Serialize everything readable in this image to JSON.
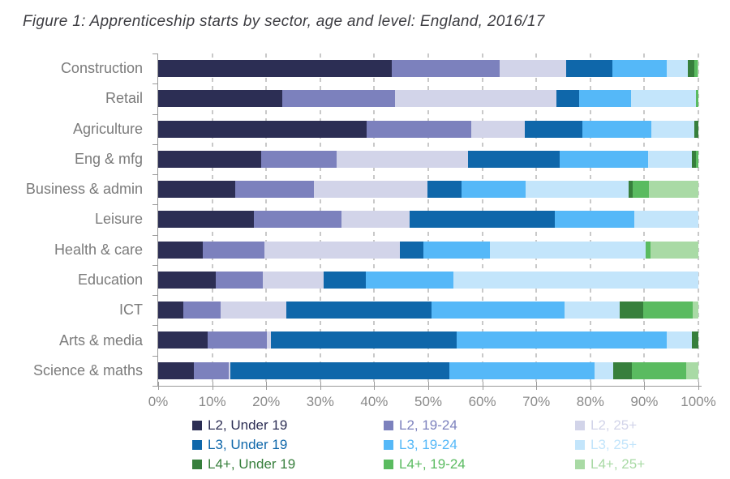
{
  "title": "Figure 1: Apprenticeship starts by sector, age and level: England, 2016/17",
  "chart_data": {
    "type": "bar",
    "stacked": true,
    "orientation": "horizontal",
    "unit": "percent",
    "xlim": [
      0,
      100
    ],
    "grid": "dashed-vertical",
    "legend_position": "bottom",
    "x_ticks": [
      "0%",
      "10%",
      "20%",
      "30%",
      "40%",
      "50%",
      "60%",
      "70%",
      "80%",
      "90%",
      "100%"
    ],
    "categories": [
      "Construction",
      "Retail",
      "Agriculture",
      "Eng & mfg",
      "Business & admin",
      "Leisure",
      "Health & care",
      "Education",
      "ICT",
      "Arts & media",
      "Science & maths"
    ],
    "series": [
      {
        "name": "L2, Under 19",
        "color": "#2C2E54",
        "values": [
          43.3,
          22.9,
          38.6,
          19.1,
          14.2,
          17.7,
          8.3,
          10.7,
          4.6,
          9.1,
          6.6
        ]
      },
      {
        "name": "L2, 19-24",
        "color": "#7C81BD",
        "values": [
          19.9,
          21.0,
          19.4,
          13.9,
          14.6,
          16.2,
          11.3,
          8.6,
          7.0,
          11.0,
          6.4
        ]
      },
      {
        "name": "L2, 25+",
        "color": "#D2D4E9",
        "values": [
          12.3,
          29.8,
          9.8,
          24.3,
          21.1,
          12.6,
          25.2,
          11.3,
          12.1,
          0.8,
          0.4
        ]
      },
      {
        "name": "L3, Under 19",
        "color": "#0F67AA",
        "values": [
          8.6,
          4.3,
          10.8,
          17.1,
          6.3,
          26.9,
          4.3,
          7.8,
          26.9,
          34.3,
          40.5
        ]
      },
      {
        "name": "L3, 19-24",
        "color": "#55B8F8",
        "values": [
          10.0,
          9.5,
          12.7,
          16.3,
          11.8,
          14.7,
          12.3,
          16.2,
          24.6,
          39.0,
          26.9
        ]
      },
      {
        "name": "L3, 25+",
        "color": "#C3E5FB",
        "values": [
          4.0,
          12.1,
          8.0,
          8.1,
          19.1,
          11.9,
          28.8,
          45.4,
          10.2,
          4.6,
          3.4
        ]
      },
      {
        "name": "L4+, Under 19",
        "color": "#377F3C",
        "values": [
          1.2,
          0.0,
          0.7,
          0.8,
          0.7,
          0.0,
          0.0,
          0.0,
          4.4,
          1.2,
          3.5
        ]
      },
      {
        "name": "L4+, 19-24",
        "color": "#5ABB60",
        "values": [
          0.5,
          0.4,
          0.0,
          0.4,
          3.0,
          0.0,
          0.9,
          0.0,
          9.2,
          0.0,
          10.1
        ]
      },
      {
        "name": "L4+, 25+",
        "color": "#A9DAA5",
        "values": [
          0.2,
          0.0,
          0.0,
          0.0,
          9.2,
          0.0,
          8.9,
          0.0,
          1.0,
          0.0,
          2.2
        ]
      }
    ]
  }
}
